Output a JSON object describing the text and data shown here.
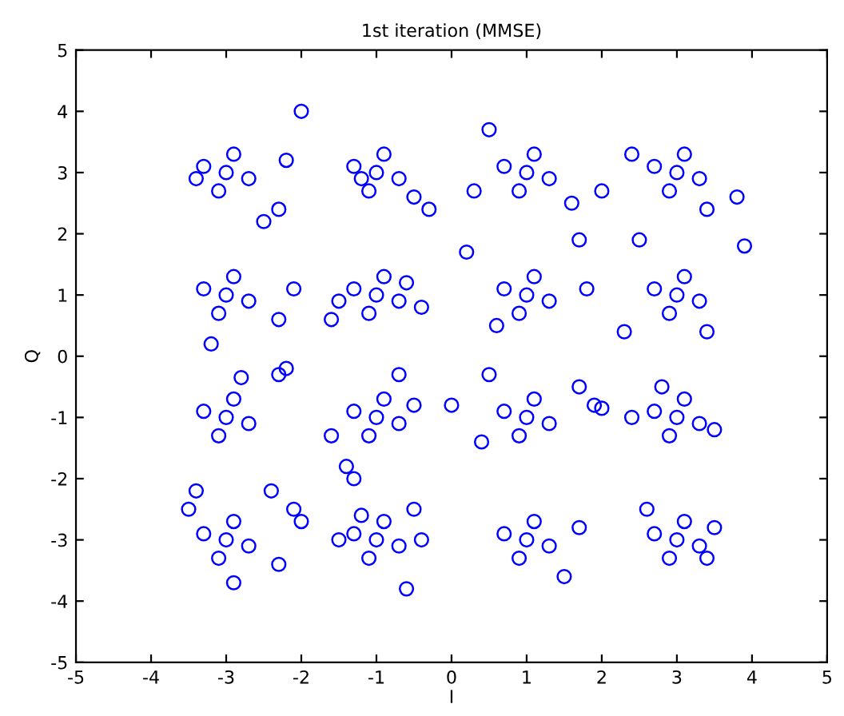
{
  "chart_data": {
    "type": "scatter",
    "title": "1st iteration (MMSE)",
    "xlabel": "I",
    "ylabel": "Q",
    "xlim": [
      -5,
      5
    ],
    "ylim": [
      -5,
      5
    ],
    "xticks": [
      -5,
      -4,
      -3,
      -2,
      -1,
      0,
      1,
      2,
      3,
      4,
      5
    ],
    "yticks": [
      -5,
      -4,
      -3,
      -2,
      -1,
      0,
      1,
      2,
      3,
      4,
      5
    ],
    "grid": false,
    "marker": "circle",
    "series": [
      {
        "color": "#0000ff",
        "x": [
          -3,
          -3.3,
          -2.7,
          -2.9,
          -3.1,
          -1,
          -1.3,
          -0.7,
          -0.9,
          -1.1,
          1,
          0.7,
          1.3,
          1.1,
          0.9,
          3,
          2.7,
          3.3,
          3.1,
          2.9,
          -3,
          -3.3,
          -2.7,
          -2.9,
          -3.1,
          -1,
          -1.3,
          -0.7,
          -0.9,
          -1.1,
          1,
          0.7,
          1.3,
          1.1,
          0.9,
          3,
          2.7,
          3.3,
          3.1,
          2.9,
          -3,
          -3.3,
          -2.7,
          -2.9,
          -3.1,
          -1,
          -1.3,
          -0.7,
          -0.9,
          -1.1,
          1,
          0.7,
          1.3,
          1.1,
          0.9,
          3,
          2.7,
          3.3,
          3.1,
          2.9,
          -3,
          -3.3,
          -2.7,
          -2.9,
          -3.1,
          -1,
          -1.3,
          -0.7,
          -0.9,
          -1.1,
          1,
          0.7,
          1.3,
          1.1,
          0.9,
          3,
          2.7,
          3.3,
          3.1,
          2.9,
          -2,
          -2.3,
          -2.5,
          -2.2,
          -3.4,
          -1.2,
          -0.5,
          -0.3,
          0.3,
          0.5,
          1.6,
          2.0,
          2.4,
          3.4,
          3.8,
          -2.1,
          -2.3,
          -2.2,
          -2.3,
          -1.5,
          -1.6,
          -0.6,
          -0.4,
          0.2,
          0.6,
          1.7,
          1.8,
          2.3,
          2.5,
          3.4,
          3.9,
          -3.2,
          -2.8,
          -1.6,
          -1.4,
          -0.7,
          -0.5,
          0.0,
          0.4,
          0.5,
          1.7,
          1.9,
          2.0,
          2.4,
          2.8,
          3.5,
          -3.4,
          -3.5,
          -2.4,
          -2.1,
          -2.0,
          -2.3,
          -1.5,
          -1.2,
          -0.5,
          -0.4,
          -0.6,
          1.5,
          1.7,
          2.6,
          3.5,
          3.4,
          -2.9,
          -1.3
        ],
        "values": [
          3,
          3.1,
          2.9,
          3.3,
          2.7,
          3,
          3.1,
          2.9,
          3.3,
          2.7,
          3,
          3.1,
          2.9,
          3.3,
          2.7,
          3,
          3.1,
          2.9,
          3.3,
          2.7,
          1,
          1.1,
          0.9,
          1.3,
          0.7,
          1,
          1.1,
          0.9,
          1.3,
          0.7,
          1,
          1.1,
          0.9,
          1.3,
          0.7,
          1,
          1.1,
          0.9,
          1.3,
          0.7,
          -1,
          -0.9,
          -1.1,
          -0.7,
          -1.3,
          -1,
          -0.9,
          -1.1,
          -0.7,
          -1.3,
          -1,
          -0.9,
          -1.1,
          -0.7,
          -1.3,
          -1,
          -0.9,
          -1.1,
          -0.7,
          -1.3,
          -3,
          -2.9,
          -3.1,
          -2.7,
          -3.3,
          -3,
          -2.9,
          -3.1,
          -2.7,
          -3.3,
          -3,
          -2.9,
          -3.1,
          -2.7,
          -3.3,
          -3,
          -2.9,
          -3.1,
          -2.7,
          -3.3,
          4.0,
          2.4,
          2.2,
          3.2,
          2.9,
          2.9,
          2.6,
          2.4,
          2.7,
          3.7,
          2.5,
          2.7,
          3.3,
          2.4,
          2.6,
          1.1,
          0.6,
          -0.2,
          -0.3,
          0.9,
          0.6,
          1.2,
          0.8,
          1.7,
          0.5,
          1.9,
          1.1,
          0.4,
          1.9,
          0.4,
          1.8,
          0.2,
          -0.35,
          -1.3,
          -1.8,
          -0.3,
          -0.8,
          -0.8,
          -1.4,
          -0.3,
          -0.5,
          -0.8,
          -0.85,
          -1.0,
          -0.5,
          -1.2,
          -2.2,
          -2.5,
          -2.2,
          -2.5,
          -2.7,
          -3.4,
          -3.0,
          -2.6,
          -2.5,
          -3.0,
          -3.8,
          -3.6,
          -2.8,
          -2.5,
          -2.8,
          -3.3,
          -3.7,
          -2.0
        ]
      }
    ]
  }
}
